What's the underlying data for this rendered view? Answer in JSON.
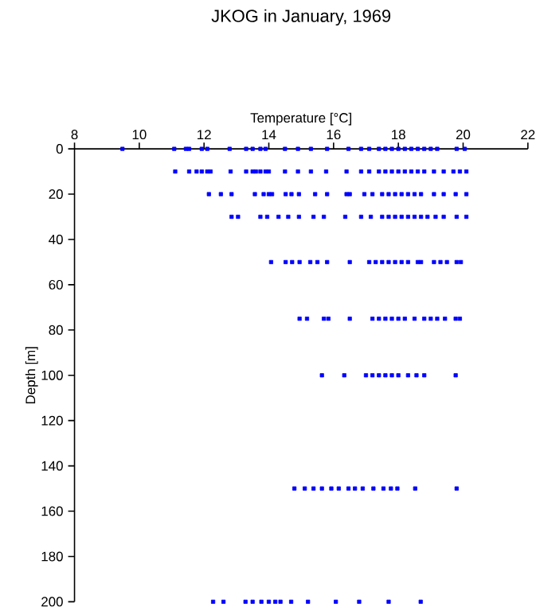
{
  "chart_data": {
    "type": "scatter",
    "title": "JKOG in January, 1969",
    "xlabel": "Temperature [°C]",
    "ylabel": "Depth [m]",
    "xlim": [
      8,
      22
    ],
    "xticks": [
      8,
      10,
      12,
      14,
      16,
      18,
      20,
      22
    ],
    "ylim": [
      200,
      0
    ],
    "yticks": [
      0,
      20,
      40,
      60,
      80,
      100,
      120,
      140,
      160,
      180,
      200
    ],
    "marker": "square",
    "series": [
      {
        "color": "#0000ff",
        "x": [
          9.48,
          11.08,
          11.44,
          11.54,
          11.93,
          12.1,
          12.79,
          13.3,
          13.5,
          13.74,
          13.9,
          14.5,
          14.9,
          15.3,
          15.8,
          16.46,
          16.85,
          17.1,
          17.4,
          17.6,
          17.8,
          18.0,
          18.2,
          18.4,
          18.6,
          18.8,
          19.0,
          19.2,
          19.8,
          20.05,
          11.11,
          11.54,
          11.77,
          11.93,
          12.1,
          12.2,
          12.82,
          13.3,
          13.5,
          13.6,
          13.74,
          13.9,
          14.0,
          14.5,
          14.9,
          15.3,
          15.77,
          16.4,
          16.85,
          17.1,
          17.4,
          17.6,
          17.8,
          18.0,
          18.2,
          18.4,
          18.6,
          18.8,
          19.1,
          19.4,
          19.7,
          19.9,
          20.1,
          12.15,
          12.52,
          12.85,
          13.57,
          13.84,
          14.0,
          14.1,
          14.52,
          14.7,
          14.93,
          15.43,
          15.8,
          16.4,
          16.5,
          16.95,
          17.2,
          17.5,
          17.7,
          17.9,
          18.1,
          18.3,
          18.5,
          18.7,
          19.1,
          19.4,
          19.77,
          20.1,
          12.85,
          13.05,
          13.74,
          13.95,
          14.3,
          14.6,
          14.93,
          15.38,
          15.7,
          16.36,
          16.85,
          17.15,
          17.5,
          17.7,
          17.9,
          18.1,
          18.3,
          18.5,
          18.7,
          18.9,
          19.15,
          19.4,
          19.8,
          20.1,
          14.07,
          14.52,
          14.72,
          14.95,
          15.28,
          15.5,
          15.8,
          16.5,
          17.1,
          17.3,
          17.5,
          17.7,
          17.9,
          18.1,
          18.3,
          18.6,
          18.7,
          19.1,
          19.3,
          19.5,
          19.8,
          19.93,
          14.95,
          15.18,
          15.7,
          15.84,
          16.5,
          17.2,
          17.4,
          17.6,
          17.8,
          18.0,
          18.2,
          18.5,
          18.8,
          19.0,
          19.2,
          19.44,
          19.77,
          19.9,
          15.64,
          16.33,
          17.0,
          17.2,
          17.4,
          17.6,
          17.8,
          18.0,
          18.3,
          18.56,
          18.8,
          19.77,
          14.79,
          15.11,
          15.38,
          15.64,
          15.93,
          16.16,
          16.46,
          16.66,
          16.9,
          17.23,
          17.54,
          17.77,
          17.97,
          18.52,
          19.8,
          12.28,
          12.6,
          13.28,
          13.5,
          13.77,
          14.0,
          14.2,
          14.36,
          14.69,
          15.21,
          16.07,
          16.79,
          17.7,
          18.69
        ],
        "values": [
          0,
          0,
          0,
          0,
          0,
          0,
          0,
          0,
          0,
          0,
          0,
          0,
          0,
          0,
          0,
          0,
          0,
          0,
          0,
          0,
          0,
          0,
          0,
          0,
          0,
          0,
          0,
          0,
          0,
          0,
          10,
          10,
          10,
          10,
          10,
          10,
          10,
          10,
          10,
          10,
          10,
          10,
          10,
          10,
          10,
          10,
          10,
          10,
          10,
          10,
          10,
          10,
          10,
          10,
          10,
          10,
          10,
          10,
          10,
          10,
          10,
          10,
          10,
          20,
          20,
          20,
          20,
          20,
          20,
          20,
          20,
          20,
          20,
          20,
          20,
          20,
          20,
          20,
          20,
          20,
          20,
          20,
          20,
          20,
          20,
          20,
          20,
          20,
          20,
          20,
          30,
          30,
          30,
          30,
          30,
          30,
          30,
          30,
          30,
          30,
          30,
          30,
          30,
          30,
          30,
          30,
          30,
          30,
          30,
          30,
          30,
          30,
          30,
          30,
          50,
          50,
          50,
          50,
          50,
          50,
          50,
          50,
          50,
          50,
          50,
          50,
          50,
          50,
          50,
          50,
          50,
          50,
          50,
          50,
          50,
          50,
          75,
          75,
          75,
          75,
          75,
          75,
          75,
          75,
          75,
          75,
          75,
          75,
          75,
          75,
          75,
          75,
          75,
          75,
          100,
          100,
          100,
          100,
          100,
          100,
          100,
          100,
          100,
          100,
          100,
          100,
          150,
          150,
          150,
          150,
          150,
          150,
          150,
          150,
          150,
          150,
          150,
          150,
          150,
          150,
          150,
          200,
          200,
          200,
          200,
          200,
          200,
          200,
          200,
          200,
          200,
          200,
          200,
          200,
          200
        ]
      }
    ]
  }
}
